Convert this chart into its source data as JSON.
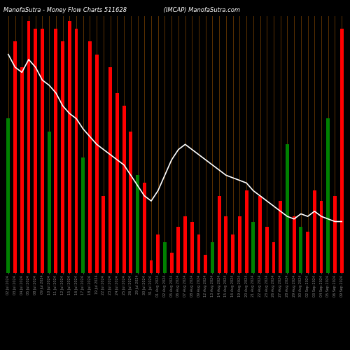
{
  "title": "ManofaSutra - Money Flow Charts 511628",
  "title2": "(IMCAP) ManofaSutra.com",
  "background_color": "#000000",
  "bar_colors": [
    "green",
    "red",
    "red",
    "red",
    "red",
    "red",
    "green",
    "red",
    "red",
    "red",
    "red",
    "green",
    "red",
    "red",
    "red",
    "red",
    "red",
    "red",
    "red",
    "green",
    "red",
    "red",
    "red",
    "green",
    "red",
    "red",
    "red",
    "red",
    "red",
    "red",
    "green",
    "red",
    "red",
    "red",
    "red",
    "red",
    "green",
    "red",
    "red",
    "red",
    "red",
    "green",
    "red",
    "green",
    "red",
    "red",
    "red",
    "green",
    "red",
    "red"
  ],
  "bar_heights": [
    60,
    90,
    80,
    98,
    95,
    95,
    55,
    95,
    90,
    98,
    95,
    45,
    90,
    85,
    30,
    80,
    70,
    65,
    55,
    38,
    35,
    5,
    15,
    12,
    8,
    18,
    22,
    20,
    15,
    7,
    12,
    30,
    22,
    15,
    22,
    32,
    20,
    30,
    18,
    12,
    28,
    50,
    22,
    18,
    16,
    32,
    28,
    60,
    30,
    95
  ],
  "line_values": [
    85,
    80,
    78,
    83,
    80,
    75,
    73,
    70,
    65,
    62,
    60,
    56,
    53,
    50,
    48,
    46,
    44,
    42,
    38,
    34,
    30,
    28,
    32,
    38,
    44,
    48,
    50,
    48,
    46,
    44,
    42,
    40,
    38,
    37,
    36,
    35,
    32,
    30,
    28,
    26,
    24,
    22,
    21,
    23,
    22,
    24,
    22,
    21,
    20,
    20
  ],
  "num_bars": 50,
  "xlabels": [
    "02 Jul 2024",
    "03 Jul 2024",
    "04 Jul 2024",
    "05 Jul 2024",
    "08 Jul 2024",
    "09 Jul 2024",
    "10 Jul 2024",
    "11 Jul 2024",
    "12 Jul 2024",
    "15 Jul 2024",
    "16 Jul 2024",
    "17 Jul 2024",
    "18 Jul 2024",
    "19 Jul 2024",
    "22 Jul 2024",
    "23 Jul 2024",
    "24 Jul 2024",
    "25 Jul 2024",
    "26 Jul 2024",
    "29 Jul 2024",
    "30 Jul 2024",
    "31 Jul 2024",
    "01 Aug 2024",
    "02 Aug 2024",
    "05 Aug 2024",
    "06 Aug 2024",
    "07 Aug 2024",
    "08 Aug 2024",
    "09 Aug 2024",
    "12 Aug 2024",
    "13 Aug 2024",
    "14 Aug 2024",
    "15 Aug 2024",
    "16 Aug 2024",
    "19 Aug 2024",
    "20 Aug 2024",
    "21 Aug 2024",
    "22 Aug 2024",
    "23 Aug 2024",
    "26 Aug 2024",
    "27 Aug 2024",
    "28 Aug 2024",
    "29 Aug 2024",
    "30 Aug 2024",
    "02 Sep 2024",
    "03 Sep 2024",
    "04 Sep 2024",
    "05 Sep 2024",
    "06 Sep 2024",
    "09 Sep 2024"
  ],
  "title_color": "#ffffff",
  "line_color": "#ffffff",
  "grid_color": "#5a3000",
  "ylim": [
    0,
    100
  ],
  "bar_width": 0.5
}
